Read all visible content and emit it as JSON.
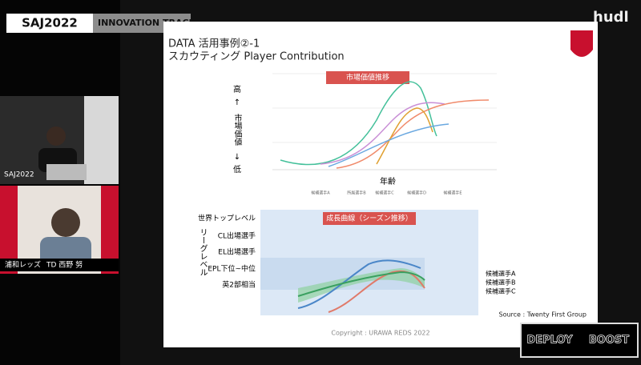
{
  "banner": {
    "event": "SAJ2022",
    "track": "INNOVATION TRACK"
  },
  "brand": "hudl",
  "speaker": {
    "event": "SAJ2022",
    "club": "浦和レッズ",
    "name": "TD 西野 努"
  },
  "slide": {
    "title_line1": "DATA 活用事例②-1",
    "title_line2": "スカウティング Player Contribution",
    "chart1": {
      "title": "市場価値推移",
      "y_high": "高",
      "y_label": "市場価値",
      "y_low": "低",
      "x_label": "年齢",
      "legend": [
        "候補選手A",
        "所属選手B",
        "候補選手C",
        "候補選手D",
        "候補選手E"
      ]
    },
    "chart2": {
      "title": "成長曲線（シーズン推移）",
      "y_label": "リーグレベル",
      "levels": [
        "世界トップレベル",
        "CL出場選手",
        "EL出場選手",
        "EPL下位~中位",
        "英2部相当"
      ],
      "legend": [
        "候補選手A",
        "候補選手B",
        "候補選手C"
      ]
    },
    "copyright": "Copyright : URAWA REDS 2022",
    "source": "Source : Twenty First Group"
  },
  "logo": {
    "line1": "DEPLOY",
    "line2": "BOOST"
  }
}
